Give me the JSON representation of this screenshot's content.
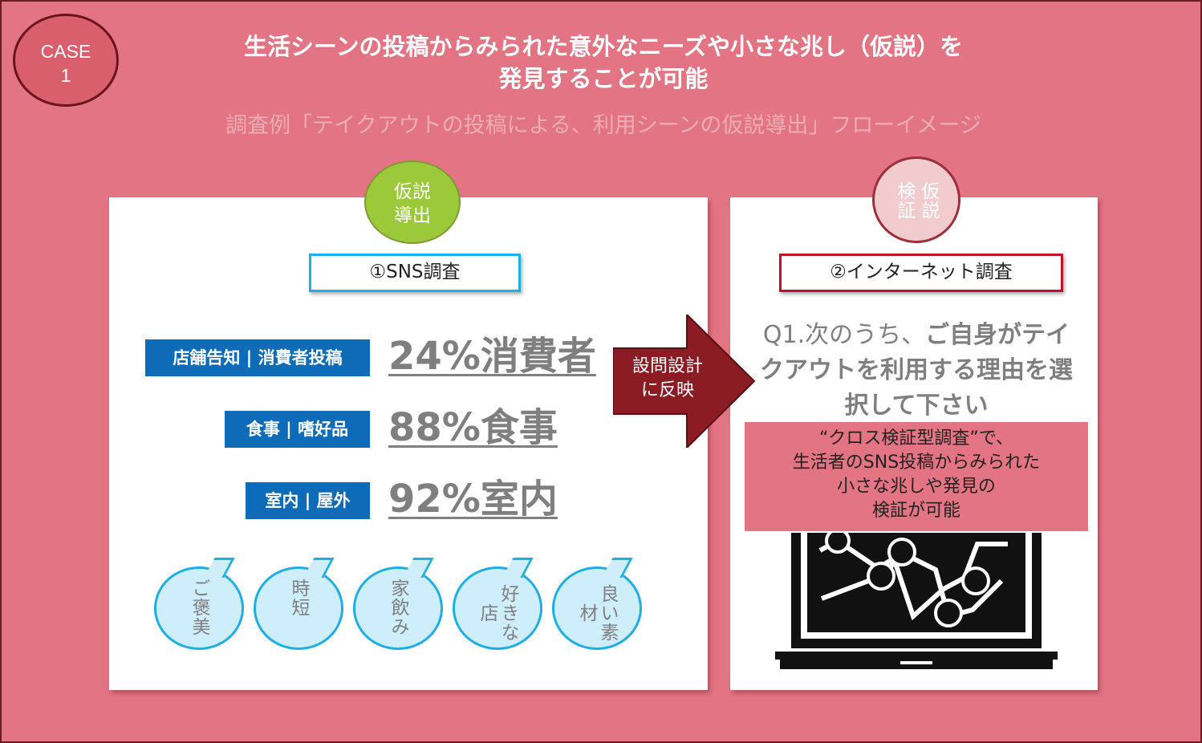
{
  "badge": {
    "line1": "CASE",
    "line2": "1"
  },
  "headline": {
    "line1": "生活シーンの投稿からみられた意外なニーズや小さな兆し（仮説）を",
    "line2": "発見することが可能"
  },
  "subheadline": "調査例「テイクアウトの投稿による、利用シーンの仮説導出」フローイメージ",
  "left_panel": {
    "circle_label": "仮説導出",
    "box_label": "①SNS調査",
    "rows": [
      {
        "tag": "店舗告知 | 消費者投稿",
        "stat": "24%消費者"
      },
      {
        "tag": "食事 | 嗜好品",
        "stat": "88%食事"
      },
      {
        "tag": "室内 | 屋外",
        "stat": "92%室内"
      }
    ],
    "bubbles": [
      "ご褒美",
      "時短",
      "家飲み",
      "好きな店",
      "良い素材"
    ]
  },
  "arrow": {
    "line1": "設問設計",
    "line2": "に反映"
  },
  "right_panel": {
    "circle_label": "仮説検証",
    "box_label": "②インターネット調査",
    "question": {
      "prefix": "Q1.次のうち、",
      "bold": "ご自身がテイクアウトを利用する理由を選択して下さい"
    },
    "note": {
      "line1": "“クロス検証型調査”で、",
      "line2": "生活者のSNS投稿からみられた",
      "line3": "小さな兆しや発見の",
      "line4": "検証が可能"
    }
  },
  "colors": {
    "background": "#e37483",
    "badge": "#d95f6d",
    "blue_tag": "#0d6bb8",
    "green_circle": "#9bc93a",
    "arrow": "#8b1c24",
    "sns_border": "#17b3e8",
    "net_border": "#c0112a"
  },
  "icons": {
    "arrow": "arrow-right-icon",
    "laptop": "laptop-chart-icon"
  }
}
